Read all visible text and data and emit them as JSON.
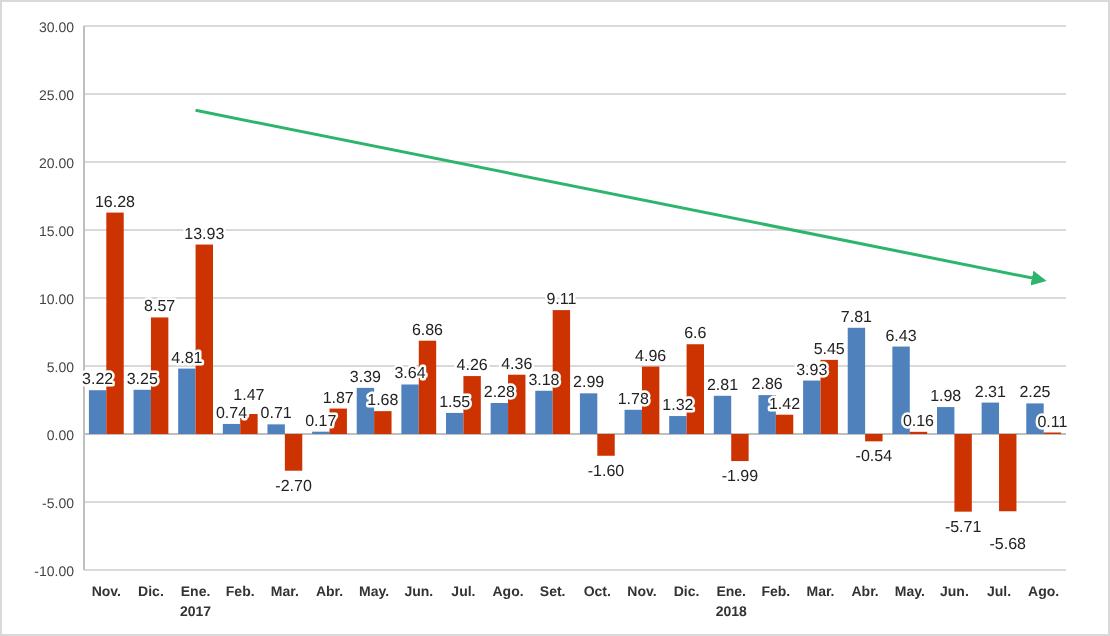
{
  "chart_data": {
    "type": "bar",
    "categories": [
      "Nov.",
      "Dic.",
      "Ene.\n2017",
      "Feb.",
      "Mar.",
      "Abr.",
      "May.",
      "Jun.",
      "Jul.",
      "Ago.",
      "Set.",
      "Oct.",
      "Nov.",
      "Dic.",
      "Ene.\n2018",
      "Feb.",
      "Mar.",
      "Abr.",
      "May.",
      "Jun.",
      "Jul.",
      "Ago."
    ],
    "series": [
      {
        "color": "#4f81bd",
        "values": [
          3.22,
          3.25,
          4.81,
          0.74,
          0.71,
          0.17,
          3.39,
          3.64,
          1.55,
          2.28,
          3.18,
          2.99,
          1.78,
          1.32,
          2.81,
          2.86,
          3.93,
          7.81,
          6.43,
          1.98,
          2.31,
          2.25
        ],
        "value_labels": [
          "3.22",
          "3.25",
          "4.81",
          "0.74",
          "0.71",
          "0.17",
          "3.39",
          "3.64",
          "1.55",
          "2.28",
          "3.18",
          "2.99",
          "1.78",
          "1.32",
          "2.81",
          "2.86",
          "3.93",
          "7.81",
          "6.43",
          "1.98",
          "2.31",
          "2.25"
        ]
      },
      {
        "color": "#cc3300",
        "values": [
          16.28,
          8.57,
          13.93,
          1.47,
          -2.7,
          1.87,
          1.68,
          6.86,
          4.26,
          4.36,
          9.11,
          -1.6,
          4.96,
          6.6,
          -1.99,
          1.42,
          5.45,
          -0.54,
          0.16,
          -5.71,
          -5.68,
          0.11
        ],
        "value_labels": [
          "16.28",
          "8.57",
          "13.93",
          "1.47",
          "-2.70",
          "1.87",
          "1.68",
          "6.86",
          "4.26",
          "4.36",
          "9.11",
          "-1.60",
          "4.96",
          "6.6",
          "-1.99",
          "1.42",
          "5.45",
          "-0.54",
          "0.16",
          "-5.71",
          "-5.68",
          "0.11"
        ]
      },
      {
        "type": "line",
        "color": "#2db56e",
        "values": [
          null,
          null,
          23.8,
          null,
          null,
          null,
          null,
          null,
          null,
          null,
          null,
          null,
          null,
          null,
          null,
          null,
          null,
          null,
          null,
          null,
          null,
          11.3
        ]
      }
    ],
    "ylim": [
      -10,
      30
    ],
    "yticks": [
      {
        "value": -10,
        "label": "-10.00"
      },
      {
        "value": -5,
        "label": "-5.00"
      },
      {
        "value": 0,
        "label": "0.00"
      },
      {
        "value": 5,
        "label": "5.00"
      },
      {
        "value": 10,
        "label": "10.00"
      },
      {
        "value": 15,
        "label": "15.00"
      },
      {
        "value": 20,
        "label": "20.00"
      },
      {
        "value": 25,
        "label": "25.00"
      },
      {
        "value": 30,
        "label": "30.00"
      }
    ],
    "grid": "y"
  }
}
